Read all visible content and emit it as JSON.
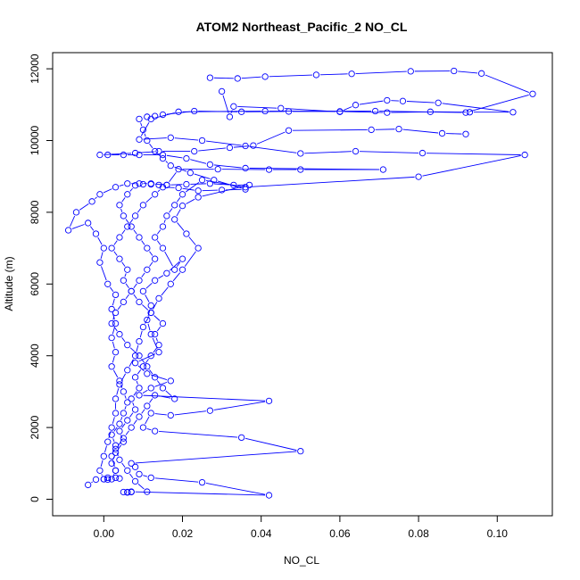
{
  "chart_data": {
    "type": "scatter",
    "title": "ATOM2 Northeast_Pacific_2 NO_CL",
    "xlabel": "NO_CL",
    "ylabel": "Altitude (m)",
    "xlim": [
      -0.013,
      0.114
    ],
    "ylim": [
      -460,
      12450
    ],
    "xticks": [
      0.0,
      0.02,
      0.04,
      0.06,
      0.08,
      0.1
    ],
    "xtick_labels": [
      "0.00",
      "0.02",
      "0.04",
      "0.06",
      "0.08",
      "0.10"
    ],
    "yticks": [
      0,
      2000,
      4000,
      6000,
      8000,
      10000,
      12000
    ],
    "ytick_labels": [
      "0",
      "2000",
      "4000",
      "6000",
      "8000",
      "10000",
      "12000"
    ],
    "grid": false,
    "legend": "none",
    "marker": "open-circle",
    "line": true,
    "color": "#0000ff",
    "series": [
      {
        "points": [
          [
            0.007,
            200
          ],
          [
            0.006,
            200
          ],
          [
            0.006,
            190
          ],
          [
            0.005,
            200
          ],
          [
            0.007,
            210
          ],
          [
            0.042,
            110
          ],
          [
            0.025,
            470
          ],
          [
            0.012,
            600
          ],
          [
            0.009,
            700
          ],
          [
            0.008,
            900
          ],
          [
            0.007,
            1000
          ],
          [
            0.05,
            1340
          ],
          [
            0.035,
            1720
          ],
          [
            0.013,
            1900
          ],
          [
            0.01,
            2000
          ],
          [
            0.012,
            2400
          ],
          [
            0.017,
            2340
          ],
          [
            0.027,
            2470
          ],
          [
            0.042,
            2740
          ],
          [
            0.009,
            2900
          ],
          [
            0.012,
            3100
          ],
          [
            0.017,
            3300
          ],
          [
            0.011,
            3500
          ],
          [
            0.008,
            3800
          ],
          [
            0.014,
            4100
          ],
          [
            0.012,
            4600
          ],
          [
            0.011,
            5000
          ],
          [
            0.012,
            5400
          ],
          [
            0.01,
            5800
          ],
          [
            0.013,
            6100
          ],
          [
            0.016,
            6300
          ],
          [
            0.02,
            6700
          ],
          [
            0.018,
            6400
          ],
          [
            0.015,
            7000
          ],
          [
            0.013,
            7300
          ],
          [
            0.015,
            7600
          ],
          [
            0.016,
            7900
          ],
          [
            0.018,
            8200
          ],
          [
            0.02,
            8500
          ],
          [
            0.025,
            8900
          ],
          [
            0.036,
            8700
          ],
          [
            0.08,
            8990
          ],
          [
            0.107,
            9600
          ],
          [
            0.081,
            9650
          ],
          [
            0.064,
            9700
          ],
          [
            0.05,
            9640
          ],
          [
            0.036,
            9850
          ],
          [
            0.025,
            10000
          ],
          [
            0.017,
            10080
          ],
          [
            0.009,
            10030
          ],
          [
            0.012,
            10600
          ],
          [
            0.019,
            10800
          ],
          [
            0.041,
            10820
          ],
          [
            0.069,
            10820
          ],
          [
            0.092,
            10780
          ],
          [
            0.109,
            11300
          ],
          [
            0.096,
            11870
          ],
          [
            0.089,
            11940
          ],
          [
            0.078,
            11930
          ],
          [
            0.063,
            11860
          ],
          [
            0.054,
            11830
          ],
          [
            0.041,
            11780
          ],
          [
            0.034,
            11730
          ],
          [
            0.027,
            11750
          ]
        ]
      },
      {
        "points": [
          [
            0.004,
            580
          ],
          [
            0.003,
            600
          ],
          [
            0.003,
            800
          ],
          [
            0.002,
            1200
          ],
          [
            0.003,
            1500
          ],
          [
            0.002,
            1800
          ],
          [
            0.004,
            2100
          ],
          [
            0.005,
            2400
          ],
          [
            0.006,
            2700
          ],
          [
            0.005,
            3000
          ],
          [
            0.004,
            3300
          ],
          [
            0.002,
            3700
          ],
          [
            0.003,
            4100
          ],
          [
            0.002,
            4500
          ],
          [
            0.003,
            4900
          ],
          [
            0.002,
            5300
          ],
          [
            0.003,
            5700
          ],
          [
            0.001,
            6000
          ],
          [
            -0.001,
            6600
          ],
          [
            0.0,
            7000
          ],
          [
            -0.002,
            7400
          ],
          [
            -0.004,
            7700
          ],
          [
            -0.009,
            7500
          ],
          [
            -0.007,
            8000
          ],
          [
            -0.003,
            8300
          ],
          [
            -0.001,
            8500
          ],
          [
            0.003,
            8700
          ],
          [
            0.006,
            8800
          ],
          [
            0.009,
            8800
          ],
          [
            0.012,
            8800
          ],
          [
            0.016,
            8760
          ],
          [
            0.019,
            9200
          ],
          [
            0.029,
            9200
          ],
          [
            0.042,
            9190
          ],
          [
            0.05,
            9190
          ],
          [
            0.071,
            9190
          ],
          [
            0.036,
            9230
          ],
          [
            0.027,
            9330
          ],
          [
            0.021,
            9500
          ],
          [
            0.015,
            9600
          ],
          [
            0.009,
            9600
          ],
          [
            0.005,
            9600
          ],
          [
            0.001,
            9600
          ],
          [
            -0.001,
            9600
          ],
          [
            0.008,
            9650
          ],
          [
            0.014,
            9700
          ],
          [
            0.023,
            9700
          ],
          [
            0.032,
            9800
          ],
          [
            0.038,
            9860
          ],
          [
            0.047,
            10280
          ],
          [
            0.068,
            10300
          ],
          [
            0.075,
            10320
          ],
          [
            0.086,
            10200
          ],
          [
            0.092,
            10180
          ]
        ]
      },
      {
        "points": [
          [
            -0.004,
            400
          ],
          [
            -0.002,
            550
          ],
          [
            0.0,
            560
          ],
          [
            0.001,
            600
          ],
          [
            0.002,
            560
          ],
          [
            0.003,
            800
          ],
          [
            0.002,
            1000
          ],
          [
            0.003,
            1300
          ],
          [
            0.005,
            1600
          ],
          [
            0.004,
            1900
          ],
          [
            0.006,
            2200
          ],
          [
            0.008,
            2500
          ],
          [
            0.007,
            2800
          ],
          [
            0.009,
            3100
          ],
          [
            0.008,
            3400
          ],
          [
            0.01,
            3700
          ],
          [
            0.012,
            4000
          ],
          [
            0.014,
            4300
          ],
          [
            0.013,
            4600
          ],
          [
            0.015,
            4900
          ],
          [
            0.012,
            5200
          ],
          [
            0.009,
            5500
          ],
          [
            0.007,
            5800
          ],
          [
            0.005,
            6100
          ],
          [
            0.006,
            6400
          ],
          [
            0.004,
            6700
          ],
          [
            0.002,
            7000
          ],
          [
            0.004,
            7300
          ],
          [
            0.006,
            7600
          ],
          [
            0.008,
            7900
          ],
          [
            0.01,
            8200
          ],
          [
            0.013,
            8500
          ],
          [
            0.015,
            8700
          ],
          [
            0.019,
            8680
          ],
          [
            0.024,
            8600
          ],
          [
            0.03,
            8620
          ],
          [
            0.036,
            8640
          ],
          [
            0.028,
            8900
          ],
          [
            0.022,
            9100
          ],
          [
            0.017,
            9300
          ],
          [
            0.015,
            9500
          ],
          [
            0.013,
            9700
          ],
          [
            0.011,
            10000
          ],
          [
            0.01,
            10300
          ],
          [
            0.009,
            10600
          ],
          [
            0.011,
            10660
          ],
          [
            0.013,
            10680
          ],
          [
            0.015,
            10720
          ],
          [
            0.023,
            10820
          ],
          [
            0.035,
            10800
          ],
          [
            0.047,
            10810
          ],
          [
            0.06,
            10810
          ],
          [
            0.072,
            10780
          ],
          [
            0.083,
            10800
          ],
          [
            0.093,
            10790
          ],
          [
            0.104,
            10790
          ],
          [
            0.085,
            11050
          ],
          [
            0.076,
            11100
          ],
          [
            0.072,
            11120
          ],
          [
            0.064,
            10990
          ],
          [
            0.06,
            10800
          ],
          [
            0.045,
            10900
          ],
          [
            0.033,
            10950
          ],
          [
            0.032,
            10660
          ],
          [
            0.03,
            11370
          ]
        ]
      },
      {
        "points": [
          [
            0.011,
            210
          ],
          [
            0.008,
            500
          ],
          [
            0.006,
            800
          ],
          [
            0.004,
            1100
          ],
          [
            0.003,
            1400
          ],
          [
            0.005,
            1700
          ],
          [
            0.007,
            2000
          ],
          [
            0.009,
            2300
          ],
          [
            0.011,
            2600
          ],
          [
            0.013,
            2900
          ],
          [
            0.018,
            2800
          ],
          [
            0.015,
            3100
          ],
          [
            0.013,
            3400
          ],
          [
            0.011,
            3700
          ],
          [
            0.009,
            4000
          ],
          [
            0.006,
            4300
          ],
          [
            0.004,
            4600
          ],
          [
            0.002,
            4900
          ],
          [
            0.003,
            5200
          ],
          [
            0.005,
            5500
          ],
          [
            0.007,
            5800
          ],
          [
            0.009,
            6100
          ],
          [
            0.011,
            6400
          ],
          [
            0.013,
            6700
          ],
          [
            0.011,
            7000
          ],
          [
            0.009,
            7300
          ],
          [
            0.007,
            7600
          ],
          [
            0.005,
            7900
          ],
          [
            0.004,
            8200
          ],
          [
            0.006,
            8500
          ],
          [
            0.008,
            8750
          ],
          [
            0.01,
            8780
          ],
          [
            0.012,
            8780
          ],
          [
            0.014,
            8760
          ],
          [
            0.016,
            8760
          ],
          [
            0.021,
            8780
          ],
          [
            0.027,
            8800
          ],
          [
            0.033,
            8760
          ],
          [
            0.037,
            8760
          ],
          [
            0.024,
            8420
          ],
          [
            0.02,
            8180
          ],
          [
            0.018,
            7800
          ],
          [
            0.021,
            7400
          ],
          [
            0.024,
            7000
          ],
          [
            0.02,
            6400
          ],
          [
            0.017,
            6000
          ],
          [
            0.014,
            5600
          ],
          [
            0.012,
            5200
          ],
          [
            0.01,
            4800
          ],
          [
            0.009,
            4400
          ],
          [
            0.008,
            4000
          ],
          [
            0.006,
            3600
          ],
          [
            0.004,
            3200
          ],
          [
            0.003,
            2800
          ],
          [
            0.003,
            2400
          ],
          [
            0.002,
            2000
          ],
          [
            0.001,
            1600
          ],
          [
            0.0,
            1200
          ],
          [
            -0.001,
            800
          ],
          [
            0.0,
            560
          ],
          [
            0.001,
            550
          ]
        ]
      }
    ]
  }
}
